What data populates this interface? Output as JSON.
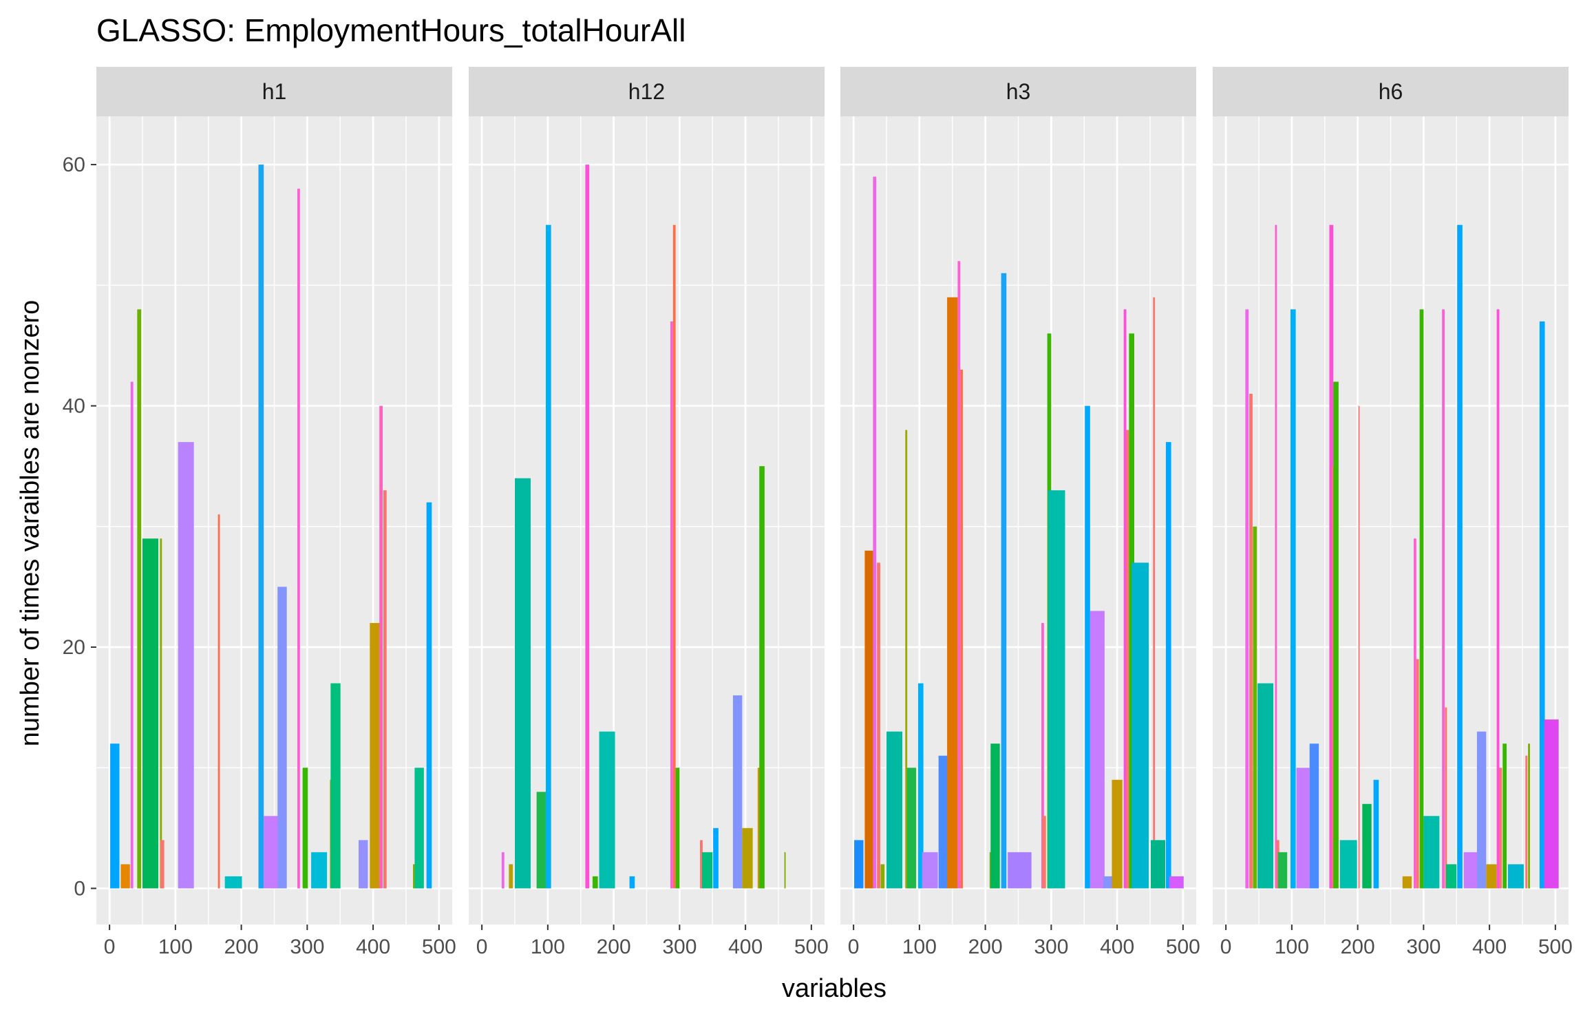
{
  "chart_data": {
    "type": "bar",
    "title": "GLASSO: EmploymentHours_totalHourAll",
    "xlabel": "variables",
    "ylabel": "number of times varaibles are nonzero",
    "xlim": [
      -20,
      520
    ],
    "ylim": [
      -3,
      64
    ],
    "x_ticks": [
      0,
      100,
      200,
      300,
      400,
      500
    ],
    "y_ticks": [
      0,
      20,
      40,
      60
    ],
    "grid": true,
    "legend": "none",
    "facets": [
      {
        "label": "h1",
        "bars": [
          {
            "x": 8,
            "value": 12,
            "w": 14,
            "color": "#00a5ff"
          },
          {
            "x": 24,
            "value": 2,
            "w": 14,
            "color": "#e58700"
          },
          {
            "x": 34,
            "value": 42,
            "w": 4,
            "color": "#f066ea"
          },
          {
            "x": 45,
            "value": 48,
            "w": 6,
            "color": "#6bb100"
          },
          {
            "x": 62,
            "value": 29,
            "w": 24,
            "color": "#00b45a"
          },
          {
            "x": 78,
            "value": 29,
            "w": 3,
            "color": "#89ac00"
          },
          {
            "x": 80,
            "value": 4,
            "w": 6,
            "color": "#f8766d"
          },
          {
            "x": 116,
            "value": 37,
            "w": 24,
            "color": "#b983ff"
          },
          {
            "x": 166,
            "value": 31,
            "w": 3,
            "color": "#fd6f4a"
          },
          {
            "x": 188,
            "value": 1,
            "w": 26,
            "color": "#00bfc4"
          },
          {
            "x": 230,
            "value": 60,
            "w": 8,
            "color": "#1aa4f4"
          },
          {
            "x": 245,
            "value": 6,
            "w": 22,
            "color": "#c77cff"
          },
          {
            "x": 262,
            "value": 25,
            "w": 14,
            "color": "#8494ff"
          },
          {
            "x": 287,
            "value": 58,
            "w": 4,
            "color": "#fd61d1"
          },
          {
            "x": 297,
            "value": 10,
            "w": 8,
            "color": "#39b600"
          },
          {
            "x": 318,
            "value": 3,
            "w": 24,
            "color": "#00bcd8"
          },
          {
            "x": 336,
            "value": 9,
            "w": 3,
            "color": "#9ca700"
          },
          {
            "x": 343,
            "value": 17,
            "w": 15,
            "color": "#00bf7d"
          },
          {
            "x": 385,
            "value": 4,
            "w": 14,
            "color": "#9590ff"
          },
          {
            "x": 403,
            "value": 22,
            "w": 16,
            "color": "#c49a00"
          },
          {
            "x": 412,
            "value": 40,
            "w": 5,
            "color": "#ff62bc"
          },
          {
            "x": 418,
            "value": 33,
            "w": 5,
            "color": "#f8766d"
          },
          {
            "x": 462,
            "value": 2,
            "w": 3,
            "color": "#7cae00"
          },
          {
            "x": 470,
            "value": 10,
            "w": 14,
            "color": "#00c08b"
          },
          {
            "x": 485,
            "value": 32,
            "w": 8,
            "color": "#00a9ff"
          }
        ]
      },
      {
        "label": "h12",
        "bars": [
          {
            "x": 32,
            "value": 3,
            "w": 4,
            "color": "#f066ea"
          },
          {
            "x": 44,
            "value": 2,
            "w": 6,
            "color": "#b79f00"
          },
          {
            "x": 62,
            "value": 34,
            "w": 24,
            "color": "#00b9a0"
          },
          {
            "x": 90,
            "value": 8,
            "w": 14,
            "color": "#20b84a"
          },
          {
            "x": 101,
            "value": 55,
            "w": 8,
            "color": "#00b0f6"
          },
          {
            "x": 160,
            "value": 60,
            "w": 6,
            "color": "#ff4fd8"
          },
          {
            "x": 172,
            "value": 1,
            "w": 8,
            "color": "#39b600"
          },
          {
            "x": 190,
            "value": 13,
            "w": 24,
            "color": "#00bfae"
          },
          {
            "x": 228,
            "value": 1,
            "w": 8,
            "color": "#00a9ff"
          },
          {
            "x": 288,
            "value": 47,
            "w": 4,
            "color": "#fd61d1"
          },
          {
            "x": 292,
            "value": 55,
            "w": 4,
            "color": "#fd6f4a"
          },
          {
            "x": 297,
            "value": 10,
            "w": 6,
            "color": "#39b600"
          },
          {
            "x": 333,
            "value": 4,
            "w": 4,
            "color": "#f8766d"
          },
          {
            "x": 342,
            "value": 3,
            "w": 16,
            "color": "#00bf7d"
          },
          {
            "x": 355,
            "value": 5,
            "w": 8,
            "color": "#00a9ff"
          },
          {
            "x": 388,
            "value": 16,
            "w": 14,
            "color": "#8494ff"
          },
          {
            "x": 403,
            "value": 5,
            "w": 16,
            "color": "#b79f00"
          },
          {
            "x": 420,
            "value": 10,
            "w": 3,
            "color": "#d39200"
          },
          {
            "x": 425,
            "value": 35,
            "w": 8,
            "color": "#39b600"
          },
          {
            "x": 460,
            "value": 3,
            "w": 2,
            "color": "#7cae00"
          }
        ]
      },
      {
        "label": "h3",
        "bars": [
          {
            "x": 8,
            "value": 4,
            "w": 14,
            "color": "#1a8cff"
          },
          {
            "x": 24,
            "value": 28,
            "w": 14,
            "color": "#d86a00"
          },
          {
            "x": 32,
            "value": 59,
            "w": 5,
            "color": "#f066ea"
          },
          {
            "x": 38,
            "value": 27,
            "w": 5,
            "color": "#f8766d"
          },
          {
            "x": 44,
            "value": 2,
            "w": 6,
            "color": "#89ac00"
          },
          {
            "x": 62,
            "value": 13,
            "w": 24,
            "color": "#00b9a0"
          },
          {
            "x": 80,
            "value": 38,
            "w": 3,
            "color": "#9ca700"
          },
          {
            "x": 88,
            "value": 10,
            "w": 14,
            "color": "#20b84a"
          },
          {
            "x": 102,
            "value": 17,
            "w": 8,
            "color": "#00b0f6"
          },
          {
            "x": 116,
            "value": 3,
            "w": 24,
            "color": "#b983ff"
          },
          {
            "x": 136,
            "value": 11,
            "w": 14,
            "color": "#4a8cff"
          },
          {
            "x": 150,
            "value": 49,
            "w": 16,
            "color": "#e07400"
          },
          {
            "x": 160,
            "value": 52,
            "w": 4,
            "color": "#fd61d1"
          },
          {
            "x": 164,
            "value": 43,
            "w": 4,
            "color": "#fd6f4a"
          },
          {
            "x": 208,
            "value": 3,
            "w": 3,
            "color": "#7cae00"
          },
          {
            "x": 215,
            "value": 12,
            "w": 14,
            "color": "#00b45a"
          },
          {
            "x": 228,
            "value": 51,
            "w": 8,
            "color": "#1aa4f4"
          },
          {
            "x": 252,
            "value": 3,
            "w": 36,
            "color": "#a880ff"
          },
          {
            "x": 287,
            "value": 22,
            "w": 4,
            "color": "#fd61d1"
          },
          {
            "x": 289,
            "value": 6,
            "w": 6,
            "color": "#f8766d"
          },
          {
            "x": 297,
            "value": 46,
            "w": 6,
            "color": "#39b600"
          },
          {
            "x": 308,
            "value": 33,
            "w": 26,
            "color": "#00bcaa"
          },
          {
            "x": 355,
            "value": 40,
            "w": 8,
            "color": "#00a9ff"
          },
          {
            "x": 370,
            "value": 23,
            "w": 22,
            "color": "#c77cff"
          },
          {
            "x": 386,
            "value": 1,
            "w": 14,
            "color": "#8494ff"
          },
          {
            "x": 400,
            "value": 9,
            "w": 16,
            "color": "#c49a00"
          },
          {
            "x": 412,
            "value": 48,
            "w": 4,
            "color": "#ff4fd8"
          },
          {
            "x": 416,
            "value": 38,
            "w": 4,
            "color": "#f8766d"
          },
          {
            "x": 422,
            "value": 46,
            "w": 8,
            "color": "#39b600"
          },
          {
            "x": 435,
            "value": 27,
            "w": 26,
            "color": "#00b5d0"
          },
          {
            "x": 456,
            "value": 49,
            "w": 3,
            "color": "#f8766d"
          },
          {
            "x": 462,
            "value": 4,
            "w": 22,
            "color": "#00b48a"
          },
          {
            "x": 478,
            "value": 37,
            "w": 8,
            "color": "#00a9ff"
          },
          {
            "x": 490,
            "value": 1,
            "w": 22,
            "color": "#d65cff"
          }
        ]
      },
      {
        "label": "h6",
        "bars": [
          {
            "x": 32,
            "value": 48,
            "w": 5,
            "color": "#f066ea"
          },
          {
            "x": 38,
            "value": 41,
            "w": 5,
            "color": "#f8766d"
          },
          {
            "x": 44,
            "value": 30,
            "w": 6,
            "color": "#6bb100"
          },
          {
            "x": 60,
            "value": 17,
            "w": 24,
            "color": "#00b9a0"
          },
          {
            "x": 76,
            "value": 55,
            "w": 3,
            "color": "#fd61d1"
          },
          {
            "x": 79,
            "value": 4,
            "w": 4,
            "color": "#f8766d"
          },
          {
            "x": 86,
            "value": 3,
            "w": 14,
            "color": "#20b84a"
          },
          {
            "x": 102,
            "value": 48,
            "w": 8,
            "color": "#00b0f6"
          },
          {
            "x": 117,
            "value": 10,
            "w": 20,
            "color": "#c77cff"
          },
          {
            "x": 134,
            "value": 12,
            "w": 14,
            "color": "#4a8cff"
          },
          {
            "x": 160,
            "value": 55,
            "w": 6,
            "color": "#ff4fd8"
          },
          {
            "x": 163,
            "value": 35,
            "w": 4,
            "color": "#f8766d"
          },
          {
            "x": 167,
            "value": 42,
            "w": 8,
            "color": "#39b600"
          },
          {
            "x": 186,
            "value": 4,
            "w": 26,
            "color": "#00bfae"
          },
          {
            "x": 202,
            "value": 40,
            "w": 2,
            "color": "#f8766d"
          },
          {
            "x": 214,
            "value": 7,
            "w": 14,
            "color": "#00b45a"
          },
          {
            "x": 228,
            "value": 9,
            "w": 8,
            "color": "#00a9ff"
          },
          {
            "x": 275,
            "value": 1,
            "w": 14,
            "color": "#c49a00"
          },
          {
            "x": 287,
            "value": 29,
            "w": 4,
            "color": "#fd61d1"
          },
          {
            "x": 291,
            "value": 19,
            "w": 4,
            "color": "#f8766d"
          },
          {
            "x": 297,
            "value": 48,
            "w": 6,
            "color": "#39b600"
          },
          {
            "x": 312,
            "value": 6,
            "w": 24,
            "color": "#00bcaa"
          },
          {
            "x": 330,
            "value": 48,
            "w": 4,
            "color": "#fd61d1"
          },
          {
            "x": 334,
            "value": 15,
            "w": 3,
            "color": "#f8766d"
          },
          {
            "x": 342,
            "value": 2,
            "w": 16,
            "color": "#00bf7d"
          },
          {
            "x": 355,
            "value": 55,
            "w": 8,
            "color": "#00a9ff"
          },
          {
            "x": 373,
            "value": 3,
            "w": 24,
            "color": "#c77cff"
          },
          {
            "x": 388,
            "value": 13,
            "w": 14,
            "color": "#8494ff"
          },
          {
            "x": 403,
            "value": 2,
            "w": 16,
            "color": "#c49a00"
          },
          {
            "x": 413,
            "value": 48,
            "w": 4,
            "color": "#ff4fd8"
          },
          {
            "x": 417,
            "value": 10,
            "w": 4,
            "color": "#f8766d"
          },
          {
            "x": 423,
            "value": 12,
            "w": 6,
            "color": "#39b600"
          },
          {
            "x": 440,
            "value": 2,
            "w": 24,
            "color": "#00b5d0"
          },
          {
            "x": 456,
            "value": 11,
            "w": 3,
            "color": "#f8766d"
          },
          {
            "x": 460,
            "value": 12,
            "w": 3,
            "color": "#7cae00"
          },
          {
            "x": 480,
            "value": 47,
            "w": 8,
            "color": "#00a9ff"
          },
          {
            "x": 494,
            "value": 14,
            "w": 22,
            "color": "#e046f0"
          }
        ]
      }
    ]
  }
}
